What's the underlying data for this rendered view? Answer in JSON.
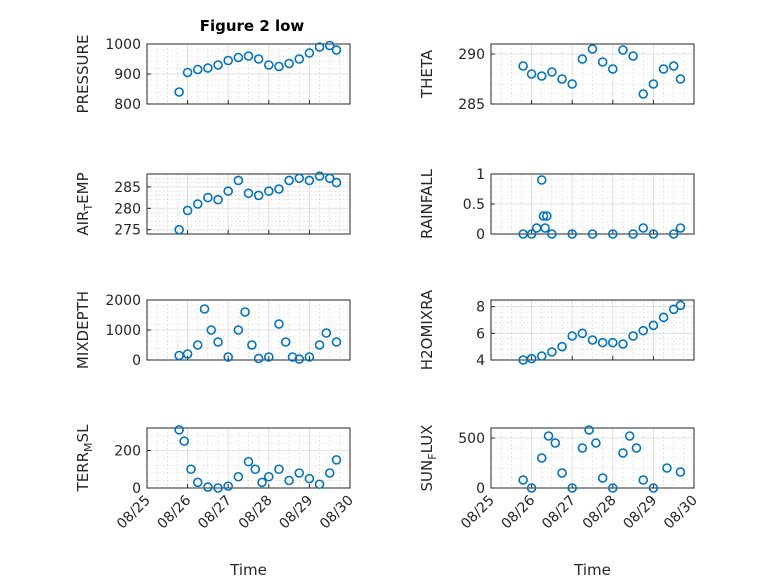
{
  "figure": {
    "width": 778,
    "height": 583,
    "marker_color": "#0072bd",
    "marker": "circle",
    "grid_major": true,
    "grid_minor": true
  },
  "chart_data": [
    {
      "type": "scatter",
      "title": "Figure 2 low",
      "ylabel": "PRESSURE",
      "xlabel": "",
      "xlim": [
        "2019-08-25",
        "2019-08-30"
      ],
      "ylim": [
        800,
        1000
      ],
      "yticks": [
        800,
        900,
        1000
      ],
      "x": [
        "2019-08-25T19:00",
        "2019-08-26T00:00",
        "2019-08-26T06:00",
        "2019-08-26T12:00",
        "2019-08-26T18:00",
        "2019-08-27T00:00",
        "2019-08-27T06:00",
        "2019-08-27T12:00",
        "2019-08-27T18:00",
        "2019-08-28T00:00",
        "2019-08-28T06:00",
        "2019-08-28T12:00",
        "2019-08-28T18:00",
        "2019-08-29T00:00",
        "2019-08-29T06:00",
        "2019-08-29T12:00",
        "2019-08-29T16:00"
      ],
      "y": [
        840,
        905,
        915,
        920,
        930,
        945,
        955,
        960,
        950,
        930,
        925,
        935,
        950,
        970,
        990,
        995,
        980
      ]
    },
    {
      "type": "scatter",
      "title": "",
      "ylabel": "THETA",
      "xlabel": "",
      "xlim": [
        "2019-08-25",
        "2019-08-30"
      ],
      "ylim": [
        285,
        291
      ],
      "yticks": [
        285,
        290
      ],
      "x": [
        "2019-08-25T19:00",
        "2019-08-26T00:00",
        "2019-08-26T06:00",
        "2019-08-26T12:00",
        "2019-08-26T18:00",
        "2019-08-27T00:00",
        "2019-08-27T06:00",
        "2019-08-27T12:00",
        "2019-08-27T18:00",
        "2019-08-28T00:00",
        "2019-08-28T06:00",
        "2019-08-28T12:00",
        "2019-08-28T18:00",
        "2019-08-29T00:00",
        "2019-08-29T06:00",
        "2019-08-29T12:00",
        "2019-08-29T16:00"
      ],
      "y": [
        288.8,
        288.0,
        287.8,
        288.2,
        287.5,
        287.0,
        289.5,
        290.5,
        289.2,
        288.5,
        290.4,
        289.8,
        286.0,
        287.0,
        288.5,
        288.8,
        287.5
      ]
    },
    {
      "type": "scatter",
      "title": "",
      "ylabel": "AIR",
      "ylabel_sub": "T",
      "ylabel_rest": "EMP",
      "xlabel": "",
      "xlim": [
        "2019-08-25",
        "2019-08-30"
      ],
      "ylim": [
        274,
        288
      ],
      "yticks": [
        275,
        280,
        285
      ],
      "x": [
        "2019-08-25T19:00",
        "2019-08-26T00:00",
        "2019-08-26T06:00",
        "2019-08-26T12:00",
        "2019-08-26T18:00",
        "2019-08-27T00:00",
        "2019-08-27T06:00",
        "2019-08-27T12:00",
        "2019-08-27T18:00",
        "2019-08-28T00:00",
        "2019-08-28T06:00",
        "2019-08-28T12:00",
        "2019-08-28T18:00",
        "2019-08-29T00:00",
        "2019-08-29T06:00",
        "2019-08-29T12:00",
        "2019-08-29T16:00"
      ],
      "y": [
        275.0,
        279.5,
        281.0,
        282.5,
        282.0,
        284.0,
        286.5,
        283.5,
        283.0,
        284.0,
        284.5,
        286.5,
        287.0,
        286.5,
        287.5,
        287.0,
        286.0
      ]
    },
    {
      "type": "scatter",
      "title": "",
      "ylabel": "RAINFALL",
      "xlabel": "",
      "xlim": [
        "2019-08-25",
        "2019-08-30"
      ],
      "ylim": [
        0,
        1
      ],
      "yticks": [
        0,
        0.5,
        1
      ],
      "x": [
        "2019-08-25T19:00",
        "2019-08-26T00:00",
        "2019-08-26T03:00",
        "2019-08-26T06:00",
        "2019-08-26T07:00",
        "2019-08-26T08:00",
        "2019-08-26T09:00",
        "2019-08-26T12:00",
        "2019-08-27T00:00",
        "2019-08-27T12:00",
        "2019-08-28T00:00",
        "2019-08-28T12:00",
        "2019-08-28T18:00",
        "2019-08-29T00:00",
        "2019-08-29T12:00",
        "2019-08-29T16:00"
      ],
      "y": [
        0,
        0,
        0.1,
        0.9,
        0.3,
        0.1,
        0.3,
        0,
        0,
        0,
        0,
        0,
        0.1,
        0,
        0,
        0.1
      ]
    },
    {
      "type": "scatter",
      "title": "",
      "ylabel": "MIXDEPTH",
      "xlabel": "",
      "xlim": [
        "2019-08-25",
        "2019-08-30"
      ],
      "ylim": [
        0,
        2000
      ],
      "yticks": [
        0,
        1000,
        2000
      ],
      "x": [
        "2019-08-25T19:00",
        "2019-08-26T00:00",
        "2019-08-26T06:00",
        "2019-08-26T10:00",
        "2019-08-26T14:00",
        "2019-08-26T18:00",
        "2019-08-27T00:00",
        "2019-08-27T06:00",
        "2019-08-27T10:00",
        "2019-08-27T14:00",
        "2019-08-27T18:00",
        "2019-08-28T00:00",
        "2019-08-28T06:00",
        "2019-08-28T10:00",
        "2019-08-28T14:00",
        "2019-08-28T18:00",
        "2019-08-29T00:00",
        "2019-08-29T06:00",
        "2019-08-29T10:00",
        "2019-08-29T16:00"
      ],
      "y": [
        150,
        200,
        500,
        1700,
        1000,
        600,
        100,
        1000,
        1600,
        500,
        50,
        100,
        1200,
        600,
        100,
        30,
        100,
        500,
        900,
        600
      ]
    },
    {
      "type": "scatter",
      "title": "",
      "ylabel": "H2OMIXRA",
      "xlabel": "",
      "xlim": [
        "2019-08-25",
        "2019-08-30"
      ],
      "ylim": [
        4,
        8.5
      ],
      "yticks": [
        4,
        6,
        8
      ],
      "x": [
        "2019-08-25T19:00",
        "2019-08-26T00:00",
        "2019-08-26T06:00",
        "2019-08-26T12:00",
        "2019-08-26T18:00",
        "2019-08-27T00:00",
        "2019-08-27T06:00",
        "2019-08-27T12:00",
        "2019-08-27T18:00",
        "2019-08-28T00:00",
        "2019-08-28T06:00",
        "2019-08-28T12:00",
        "2019-08-28T18:00",
        "2019-08-29T00:00",
        "2019-08-29T06:00",
        "2019-08-29T12:00",
        "2019-08-29T16:00"
      ],
      "y": [
        4.0,
        4.1,
        4.3,
        4.6,
        5.0,
        5.8,
        6.0,
        5.5,
        5.3,
        5.3,
        5.2,
        5.8,
        6.2,
        6.6,
        7.2,
        7.8,
        8.1
      ]
    },
    {
      "type": "scatter",
      "title": "",
      "ylabel": "TERR",
      "ylabel_sub": "M",
      "ylabel_rest": "SL",
      "xlabel": "Time",
      "xlim": [
        "2019-08-25",
        "2019-08-30"
      ],
      "ylim": [
        0,
        320
      ],
      "yticks": [
        0,
        200
      ],
      "xticks": [
        "08/25",
        "08/26",
        "08/27",
        "08/28",
        "08/29",
        "08/30"
      ],
      "x": [
        "2019-08-25T19:00",
        "2019-08-25T22:00",
        "2019-08-26T02:00",
        "2019-08-26T06:00",
        "2019-08-26T12:00",
        "2019-08-26T18:00",
        "2019-08-27T00:00",
        "2019-08-27T06:00",
        "2019-08-27T12:00",
        "2019-08-27T16:00",
        "2019-08-27T20:00",
        "2019-08-28T00:00",
        "2019-08-28T06:00",
        "2019-08-28T12:00",
        "2019-08-28T18:00",
        "2019-08-29T00:00",
        "2019-08-29T06:00",
        "2019-08-29T12:00",
        "2019-08-29T16:00"
      ],
      "y": [
        310,
        250,
        100,
        30,
        5,
        0,
        10,
        60,
        140,
        100,
        30,
        60,
        100,
        40,
        80,
        50,
        20,
        80,
        150
      ]
    },
    {
      "type": "scatter",
      "title": "",
      "ylabel": "SUN",
      "ylabel_sub": "F",
      "ylabel_rest": "LUX",
      "xlabel": "Time",
      "xlim": [
        "2019-08-25",
        "2019-08-30"
      ],
      "ylim": [
        0,
        600
      ],
      "yticks": [
        0,
        500
      ],
      "xticks": [
        "08/25",
        "08/26",
        "08/27",
        "08/28",
        "08/29",
        "08/30"
      ],
      "x": [
        "2019-08-25T19:00",
        "2019-08-26T00:00",
        "2019-08-26T06:00",
        "2019-08-26T10:00",
        "2019-08-26T14:00",
        "2019-08-26T18:00",
        "2019-08-27T00:00",
        "2019-08-27T06:00",
        "2019-08-27T10:00",
        "2019-08-27T14:00",
        "2019-08-27T18:00",
        "2019-08-28T00:00",
        "2019-08-28T06:00",
        "2019-08-28T10:00",
        "2019-08-28T14:00",
        "2019-08-28T18:00",
        "2019-08-29T00:00",
        "2019-08-29T08:00",
        "2019-08-29T16:00"
      ],
      "y": [
        80,
        0,
        300,
        520,
        450,
        150,
        0,
        400,
        580,
        450,
        100,
        0,
        350,
        520,
        400,
        80,
        0,
        200,
        160
      ]
    }
  ]
}
